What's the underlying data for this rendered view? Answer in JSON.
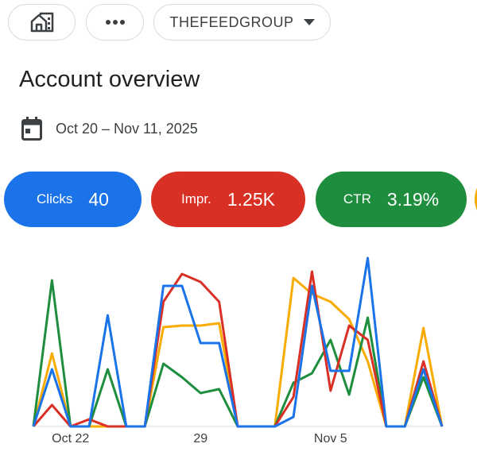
{
  "header": {
    "account": "THEFEEDGROUP",
    "title": "Account overview",
    "date_range": "Oct 20 – Nov 11, 2025"
  },
  "chart_data": {
    "type": "line",
    "categories": [
      null,
      null,
      "Oct 22",
      null,
      null,
      null,
      null,
      null,
      null,
      "29",
      null,
      null,
      null,
      null,
      null,
      null,
      "Nov 5",
      null,
      null,
      null,
      null,
      null,
      null
    ],
    "series": [
      {
        "name": "Clicks",
        "total": "40",
        "color": "#1a73e8",
        "values": [
          0,
          72,
          0,
          0,
          140,
          0,
          0,
          177,
          177,
          105,
          105,
          0,
          0,
          0,
          12,
          177,
          70,
          70,
          212,
          0,
          0,
          72,
          0
        ]
      },
      {
        "name": "Impr.",
        "total": "1.25K",
        "color": "#d93025",
        "values": [
          0,
          27,
          0,
          9,
          0,
          0,
          0,
          157,
          192,
          182,
          157,
          0,
          0,
          0,
          37,
          195,
          45,
          127,
          109,
          0,
          0,
          82,
          0
        ]
      },
      {
        "name": "CTR",
        "total": "3.19%",
        "color": "#1e8e3e",
        "values": [
          0,
          184,
          0,
          0,
          72,
          0,
          0,
          79,
          62,
          42,
          47,
          0,
          0,
          0,
          55,
          67,
          109,
          40,
          137,
          0,
          0,
          62,
          0
        ]
      },
      {
        "color": "#f9ab00",
        "values": [
          0,
          92,
          0,
          0,
          0,
          0,
          0,
          125,
          127,
          127,
          130,
          0,
          0,
          0,
          187,
          167,
          157,
          135,
          82,
          0,
          0,
          124,
          0
        ]
      }
    ]
  }
}
